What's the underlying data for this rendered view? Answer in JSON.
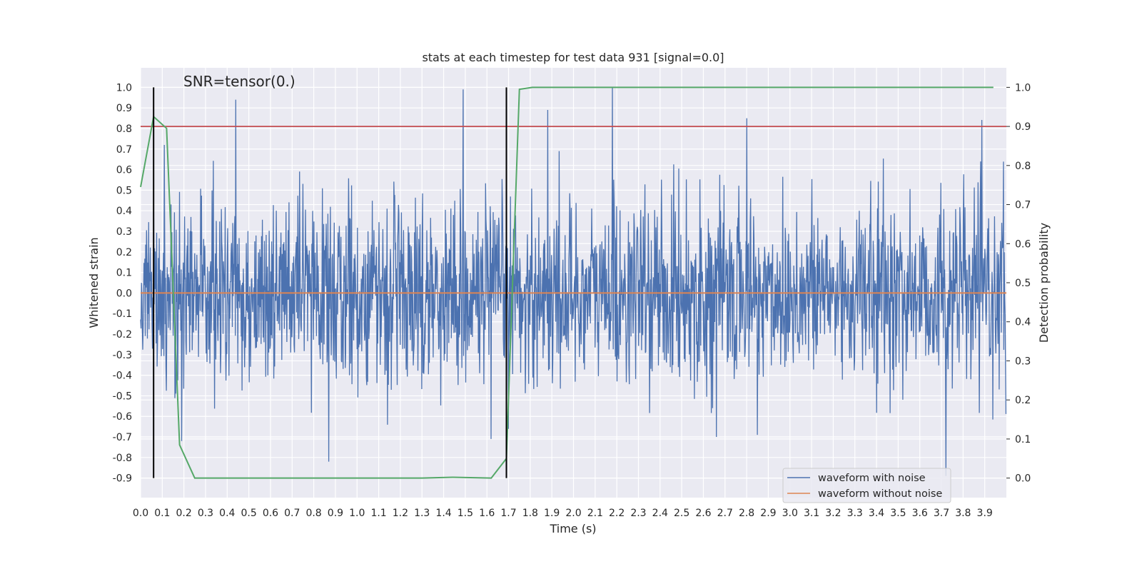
{
  "chart_data": {
    "type": "line",
    "title": "stats at each timestep for test data 931 [signal=0.0]",
    "annotation": "SNR=tensor(0.)",
    "xlabel": "Time (s)",
    "ylabel_left": "Whitened strain",
    "ylabel_right": "Detection probability",
    "xlim": [
      0.0,
      4.0
    ],
    "ylim_left": [
      -0.995,
      1.095
    ],
    "ylim_right": [
      -0.05,
      1.05
    ],
    "x_ticks": [
      "0.0",
      "0.1",
      "0.2",
      "0.3",
      "0.4",
      "0.5",
      "0.6",
      "0.7",
      "0.8",
      "0.9",
      "1.0",
      "1.1",
      "1.2",
      "1.3",
      "1.4",
      "1.5",
      "1.6",
      "1.7",
      "1.8",
      "1.9",
      "2.0",
      "2.1",
      "2.2",
      "2.3",
      "2.4",
      "2.5",
      "2.6",
      "2.7",
      "2.8",
      "2.9",
      "3.0",
      "3.1",
      "3.2",
      "3.3",
      "3.4",
      "3.5",
      "3.6",
      "3.7",
      "3.8",
      "3.9"
    ],
    "y_ticks_left": [
      "1.0",
      "0.9",
      "0.8",
      "0.7",
      "0.6",
      "0.5",
      "0.4",
      "0.3",
      "0.2",
      "0.1",
      "0.0",
      "-0.1",
      "-0.2",
      "-0.3",
      "-0.4",
      "-0.5",
      "-0.6",
      "-0.7",
      "-0.8",
      "-0.9"
    ],
    "y_ticks_right": [
      "1.0",
      "0.9",
      "0.8",
      "0.7",
      "0.6",
      "0.5",
      "0.4",
      "0.3",
      "0.2",
      "0.1",
      "0.0"
    ],
    "grid": true,
    "legend_position": "lower-right",
    "threshold": 0.9,
    "vertical_markers": [
      0.06,
      1.69
    ],
    "series": [
      {
        "name": "waveform with noise",
        "axis": "left",
        "color": "#4c72b0",
        "note": "dense noise trace, 2048 samples, approx. range -0.9 to 1.0",
        "peaks": [
          [
            0.44,
            0.94
          ],
          [
            1.49,
            0.99
          ],
          [
            2.18,
            1.0
          ],
          [
            1.88,
            0.89
          ],
          [
            2.8,
            0.85
          ],
          [
            0.11,
            0.72
          ],
          [
            3.72,
            -0.89
          ],
          [
            1.62,
            -0.71
          ],
          [
            0.19,
            -0.72
          ],
          [
            2.66,
            -0.7
          ],
          [
            2.85,
            -0.69
          ]
        ]
      },
      {
        "name": "waveform without noise",
        "axis": "left",
        "color": "#dd8452",
        "x": [
          0.0,
          4.0
        ],
        "y": [
          0.0,
          0.0
        ]
      },
      {
        "name": "",
        "axis": "right",
        "color": "#55a868",
        "x": [
          0.0,
          0.06,
          0.12,
          0.18,
          0.25,
          0.5,
          0.8,
          1.1,
          1.3,
          1.44,
          1.62,
          1.69,
          1.75,
          1.81,
          3.94
        ],
        "y": [
          0.745,
          0.925,
          0.895,
          0.085,
          0.0,
          0.0,
          0.0,
          0.0,
          0.0,
          0.002,
          0.0,
          0.05,
          0.995,
          1.0,
          1.0
        ]
      },
      {
        "name": "",
        "axis": "right",
        "color": "#c44e52",
        "x": [
          0.0,
          4.0
        ],
        "y": [
          0.9,
          0.9
        ]
      }
    ]
  }
}
